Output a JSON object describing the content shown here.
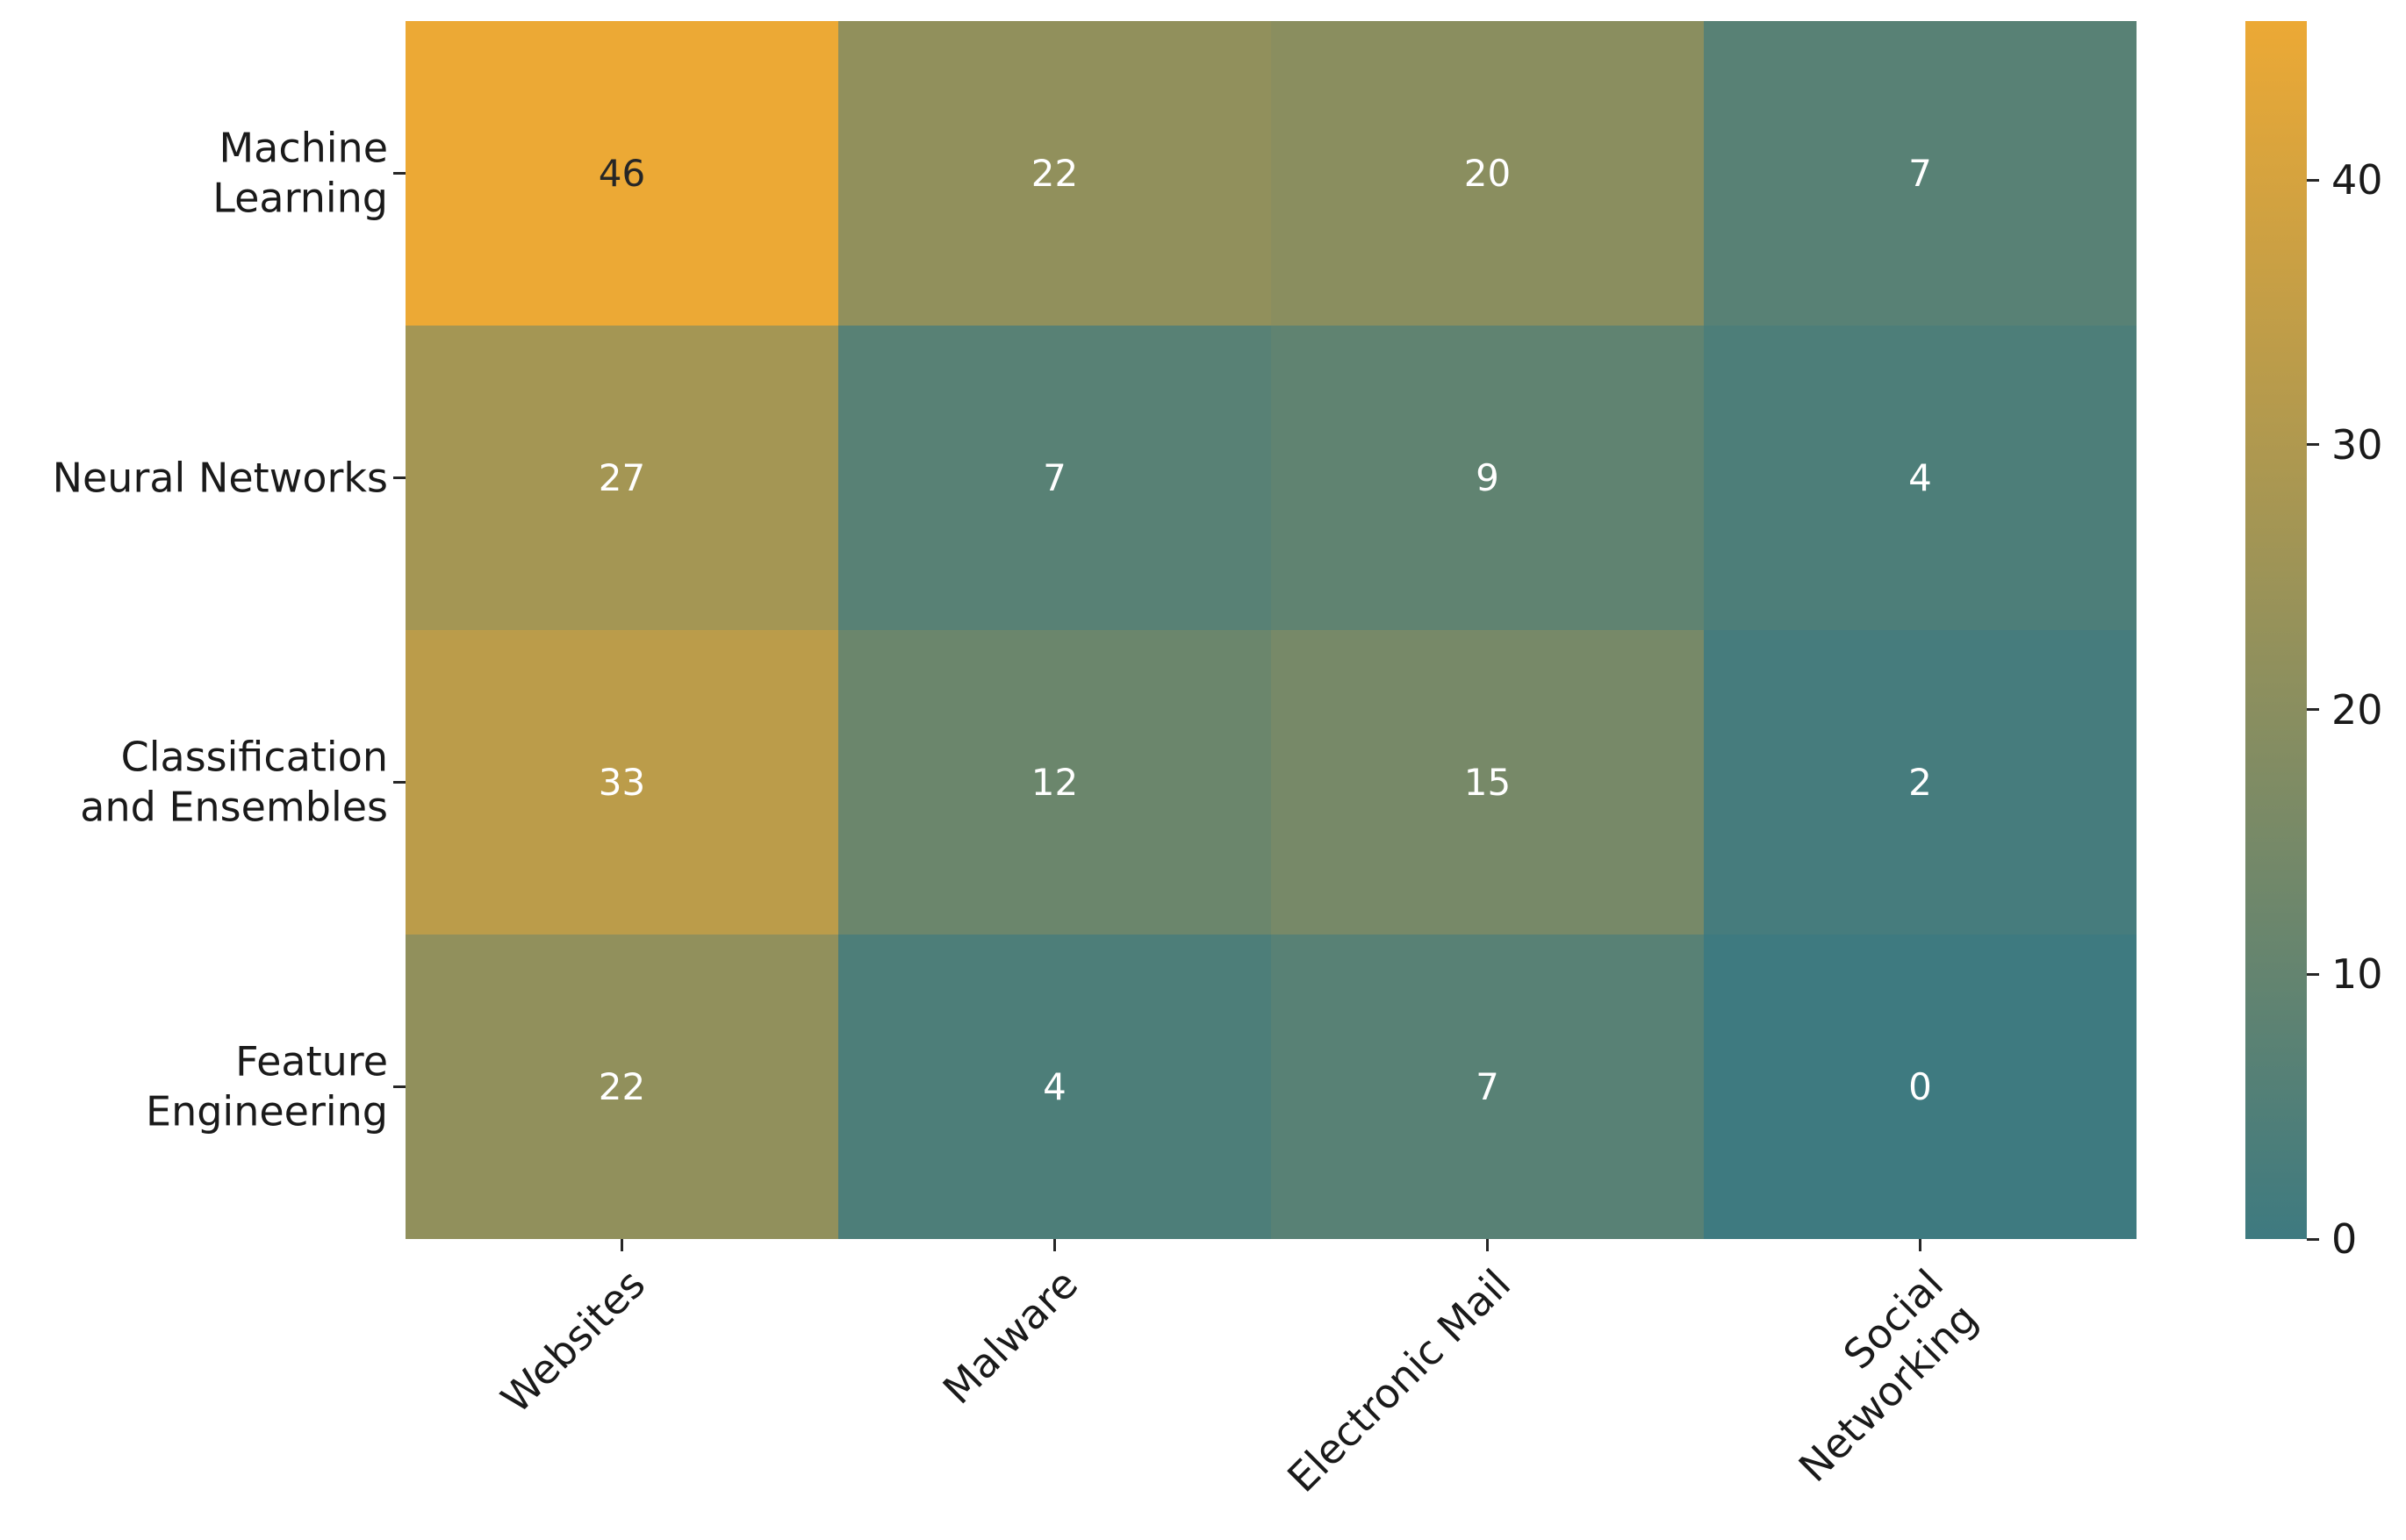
{
  "chart_data": {
    "type": "heatmap",
    "title": "",
    "rows": [
      "Machine\nLearning",
      "Neural Networks",
      "Classification\nand Ensembles",
      "Feature\nEngineering"
    ],
    "columns": [
      "Websites",
      "Malware",
      "Electronic Mail",
      "Social\nNetworking"
    ],
    "values": [
      [
        46,
        22,
        20,
        7
      ],
      [
        27,
        7,
        9,
        4
      ],
      [
        33,
        12,
        15,
        2
      ],
      [
        22,
        4,
        7,
        0
      ]
    ],
    "colormap": {
      "min_value": 0,
      "max_value": 46,
      "min_color": "#3E7A80",
      "max_color": "#ECA935"
    },
    "annotation_colors": {
      "dark": "#262626",
      "light": "#FFFFFF"
    },
    "colorbar": {
      "ticks": [
        0,
        10,
        20,
        30,
        40
      ],
      "min": 0,
      "max": 46
    },
    "grid": false,
    "legend_position": "right-colorbar"
  }
}
